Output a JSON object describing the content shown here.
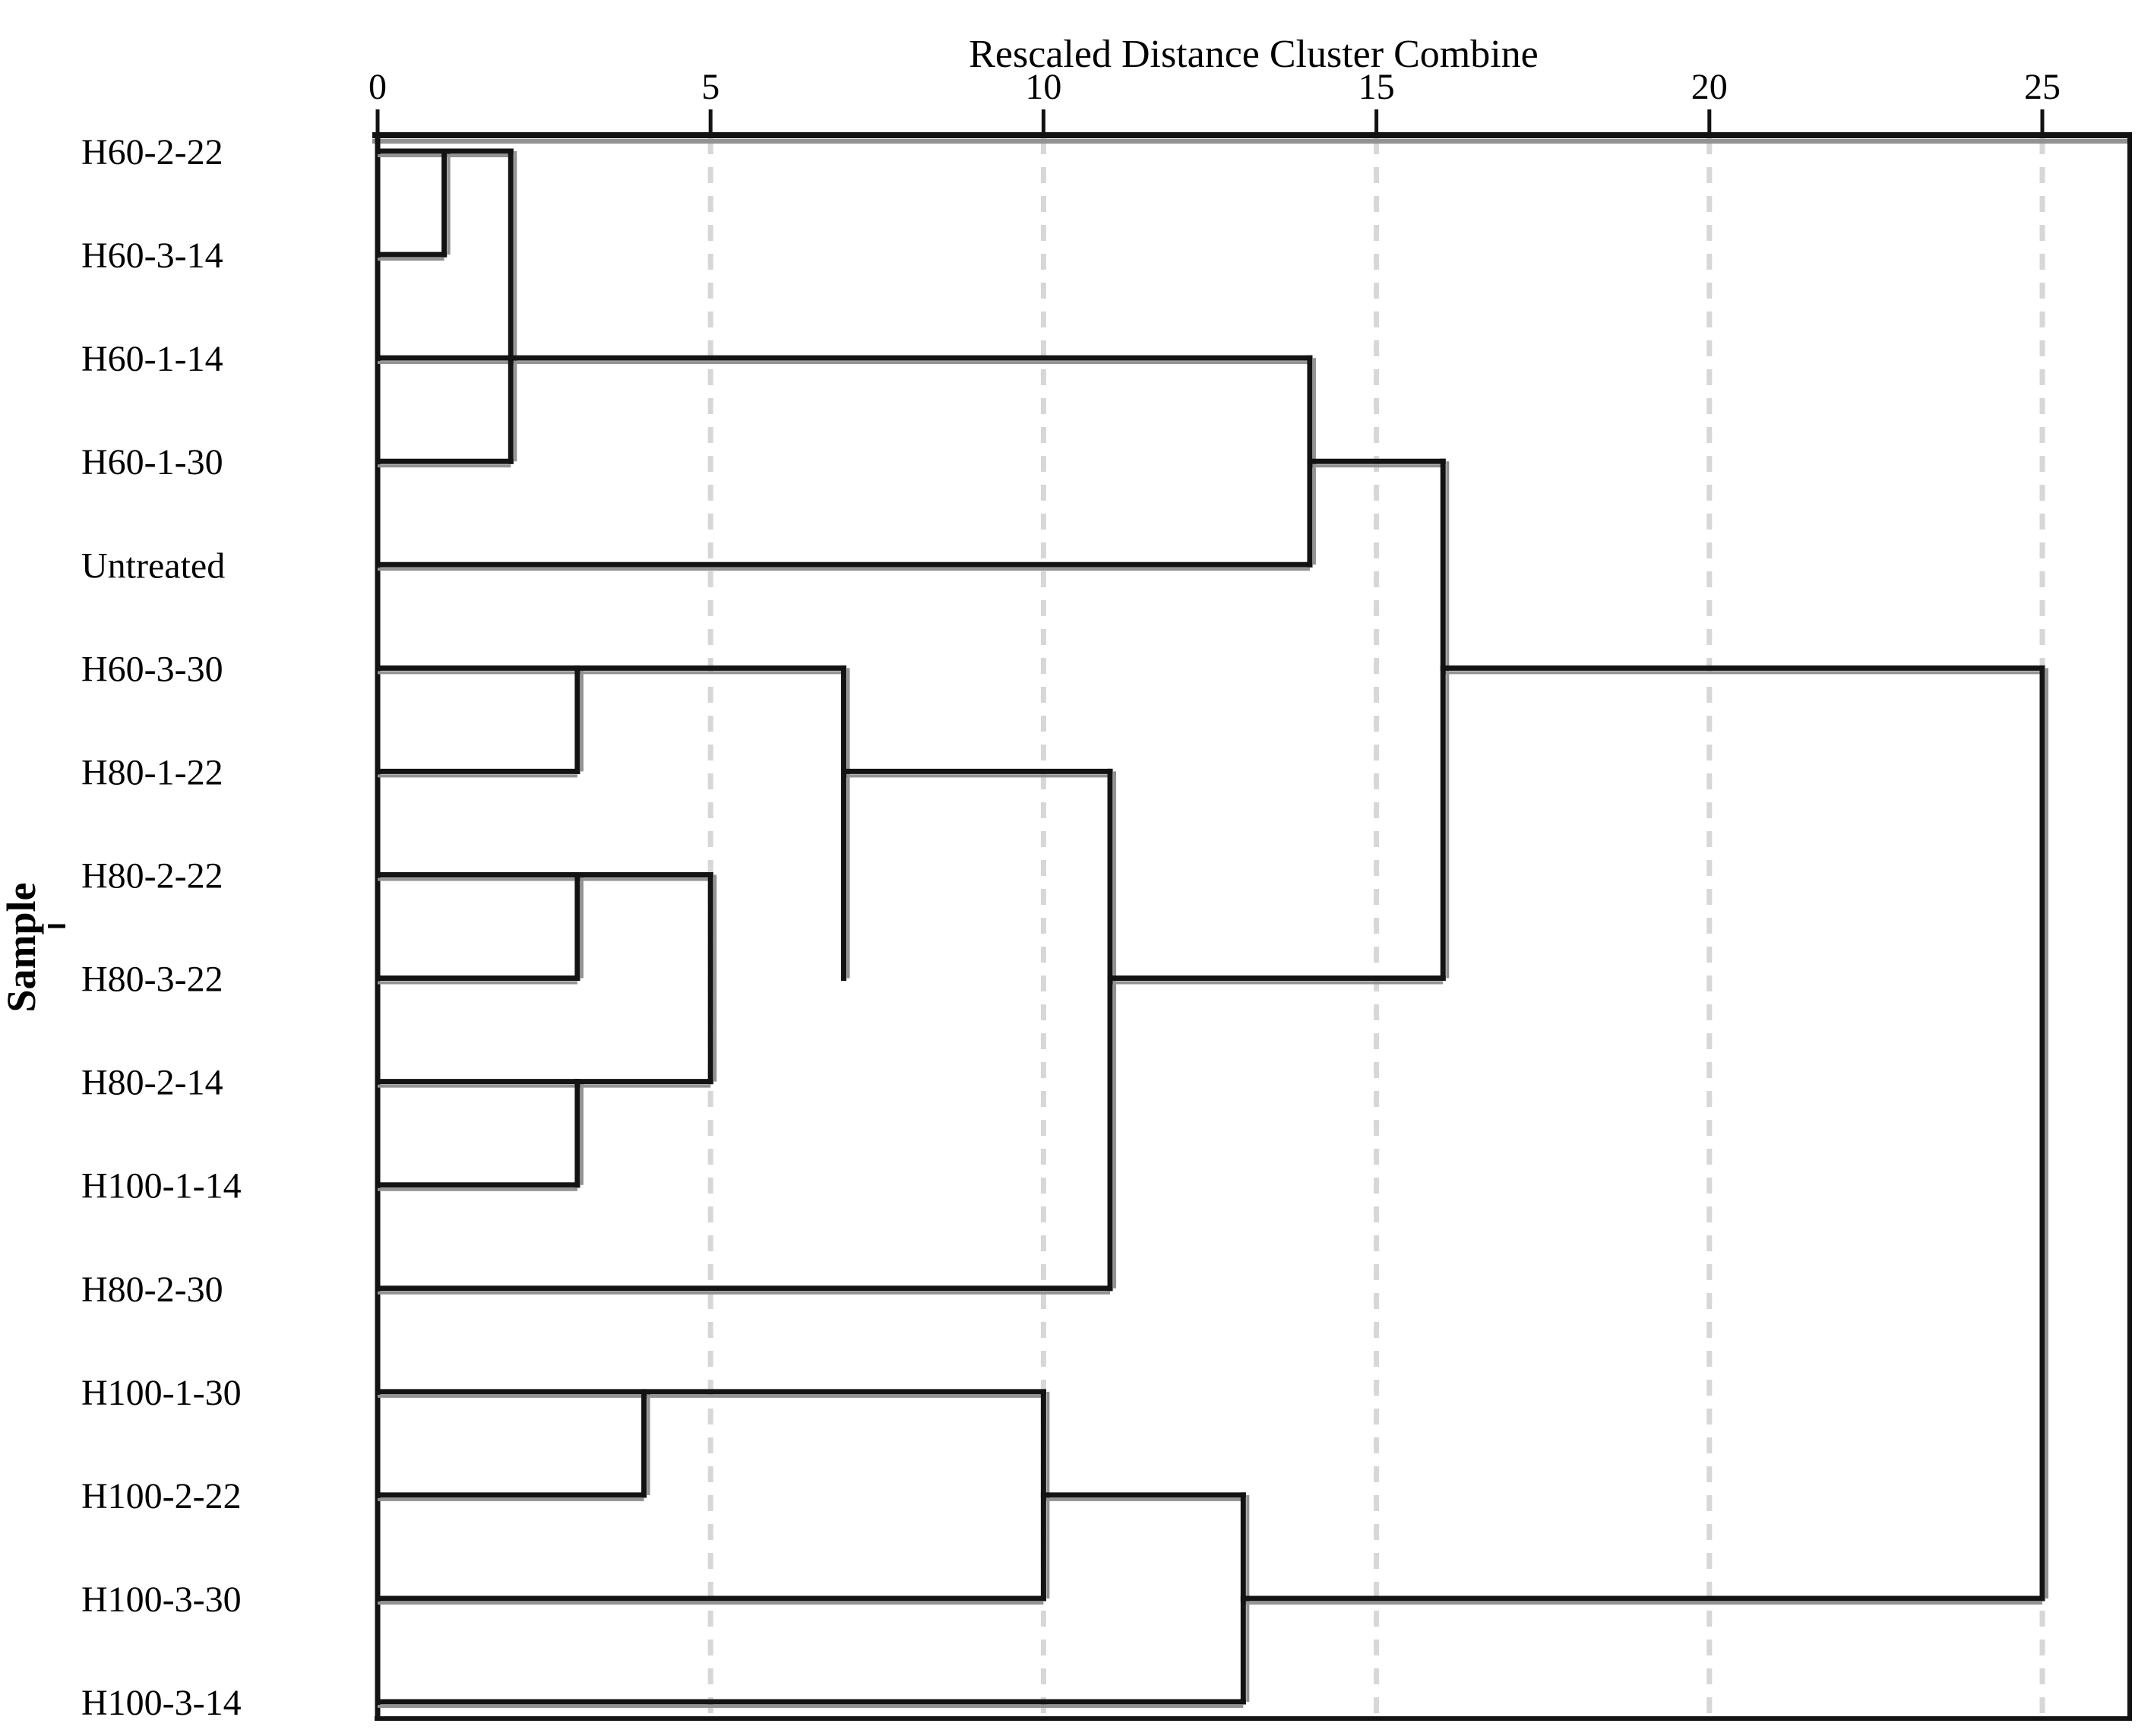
{
  "chart_data": {
    "type": "dendrogram",
    "title": "Rescaled Distance Cluster Combine",
    "y_axis_label": "Sample",
    "x_axis": {
      "range": [
        0,
        25
      ],
      "ticks": [
        0,
        5,
        10,
        15,
        20,
        25
      ],
      "gridlines_at": [
        5,
        10,
        15,
        20,
        25
      ],
      "gridline_style": "dashed",
      "position": "top"
    },
    "leaves": [
      "H60-2-22",
      "H60-3-14",
      "H60-1-14",
      "H60-1-30",
      "Untreated",
      "H60-3-30",
      "H80-1-22",
      "H80-2-22",
      "H80-3-22",
      "H80-2-14",
      "H100-1-14",
      "H80-2-30",
      "H100-1-30",
      "H100-2-22",
      "H100-3-30",
      "H100-3-14"
    ],
    "merges": [
      {
        "distance": 1,
        "joins": [
          [
            "H60-2-22"
          ],
          [
            "H60-3-14"
          ]
        ]
      },
      {
        "distance": 2,
        "joins": [
          [
            "H60-2-22",
            "H60-3-14"
          ],
          [
            "H60-1-30"
          ]
        ]
      },
      {
        "distance": 3,
        "joins": [
          [
            "H60-3-30"
          ],
          [
            "H80-1-22"
          ]
        ]
      },
      {
        "distance": 3,
        "joins": [
          [
            "H80-2-22"
          ],
          [
            "H80-3-22"
          ]
        ]
      },
      {
        "distance": 3,
        "joins": [
          [
            "H80-2-14"
          ],
          [
            "H100-1-14"
          ]
        ]
      },
      {
        "distance": 4,
        "joins": [
          [
            "H100-1-30"
          ],
          [
            "H100-2-22"
          ]
        ]
      },
      {
        "distance": 5,
        "joins": [
          [
            "H80-2-22",
            "H80-3-22"
          ],
          [
            "H80-2-14",
            "H100-1-14"
          ]
        ]
      },
      {
        "distance": 7,
        "joins": [
          [
            "H60-3-30",
            "H80-1-22"
          ],
          [
            "H80-2-22",
            "H80-3-22",
            "H80-2-14",
            "H100-1-14"
          ]
        ]
      },
      {
        "distance": 10,
        "joins": [
          [
            "H100-1-30",
            "H100-2-22"
          ],
          [
            "H100-3-30"
          ]
        ]
      },
      {
        "distance": 11,
        "joins": [
          [
            "H60-3-30",
            "H80-1-22",
            "H80-2-22",
            "H80-3-22",
            "H80-2-14",
            "H100-1-14"
          ],
          [
            "H80-2-30"
          ]
        ]
      },
      {
        "distance": 13,
        "joins": [
          [
            "H100-1-30",
            "H100-2-22",
            "H100-3-30"
          ],
          [
            "H100-3-14"
          ]
        ]
      },
      {
        "distance": 14,
        "joins": [
          [
            "H60-2-22",
            "H60-3-14",
            "H60-1-30"
          ],
          [
            "H60-1-14"
          ],
          [
            "Untreated"
          ]
        ]
      },
      {
        "distance": 16,
        "joins": [
          [
            "H60-2-22",
            "H60-3-14",
            "H60-1-14",
            "H60-1-30",
            "Untreated"
          ],
          [
            "H60-3-30",
            "H80-1-22",
            "H80-2-22",
            "H80-3-22",
            "H80-2-14",
            "H100-1-14",
            "H80-2-30"
          ]
        ]
      },
      {
        "distance": 25,
        "joins": [
          [
            "H60-2-22",
            "H60-3-14",
            "H60-1-14",
            "H60-1-30",
            "Untreated",
            "H60-3-30",
            "H80-1-22",
            "H80-2-22",
            "H80-3-22",
            "H80-2-14",
            "H100-1-14",
            "H80-2-30"
          ],
          [
            "H100-1-30",
            "H100-2-22",
            "H100-3-30",
            "H100-3-14"
          ]
        ]
      }
    ],
    "segments": {
      "horizontal": [
        [
          1,
          0,
          2
        ],
        [
          2,
          0,
          1
        ],
        [
          3,
          0,
          14
        ],
        [
          4,
          0,
          2
        ],
        [
          5,
          0,
          14
        ],
        [
          6,
          0,
          7
        ],
        [
          7,
          0,
          3
        ],
        [
          8,
          0,
          5
        ],
        [
          9,
          0,
          3
        ],
        [
          10,
          0,
          5
        ],
        [
          11,
          0,
          3
        ],
        [
          12,
          0,
          11
        ],
        [
          13,
          0,
          10
        ],
        [
          14,
          0,
          4
        ],
        [
          15,
          0,
          10
        ],
        [
          16,
          0,
          13
        ],
        [
          4,
          14,
          16
        ],
        [
          6,
          16,
          25
        ],
        [
          7,
          7,
          11
        ],
        [
          9,
          11,
          16
        ],
        [
          14,
          10,
          13
        ],
        [
          15,
          13,
          25
        ]
      ],
      "vertical": [
        [
          1,
          1,
          2
        ],
        [
          2,
          1,
          4
        ],
        [
          3,
          6,
          7
        ],
        [
          3,
          8,
          9
        ],
        [
          3,
          10,
          11
        ],
        [
          4,
          13,
          14
        ],
        [
          5,
          8,
          10
        ],
        [
          7,
          6,
          9
        ],
        [
          10,
          13,
          15
        ],
        [
          11,
          7,
          12
        ],
        [
          13,
          14,
          16
        ],
        [
          14,
          3,
          5
        ],
        [
          16,
          4,
          9
        ],
        [
          25,
          6,
          15
        ]
      ]
    },
    "colors": {
      "line": "#131313",
      "line_shadow": "#929292",
      "gridline": "#d7d7d7",
      "frame": "#131313",
      "text": "#000000",
      "background": "#ffffff"
    }
  }
}
